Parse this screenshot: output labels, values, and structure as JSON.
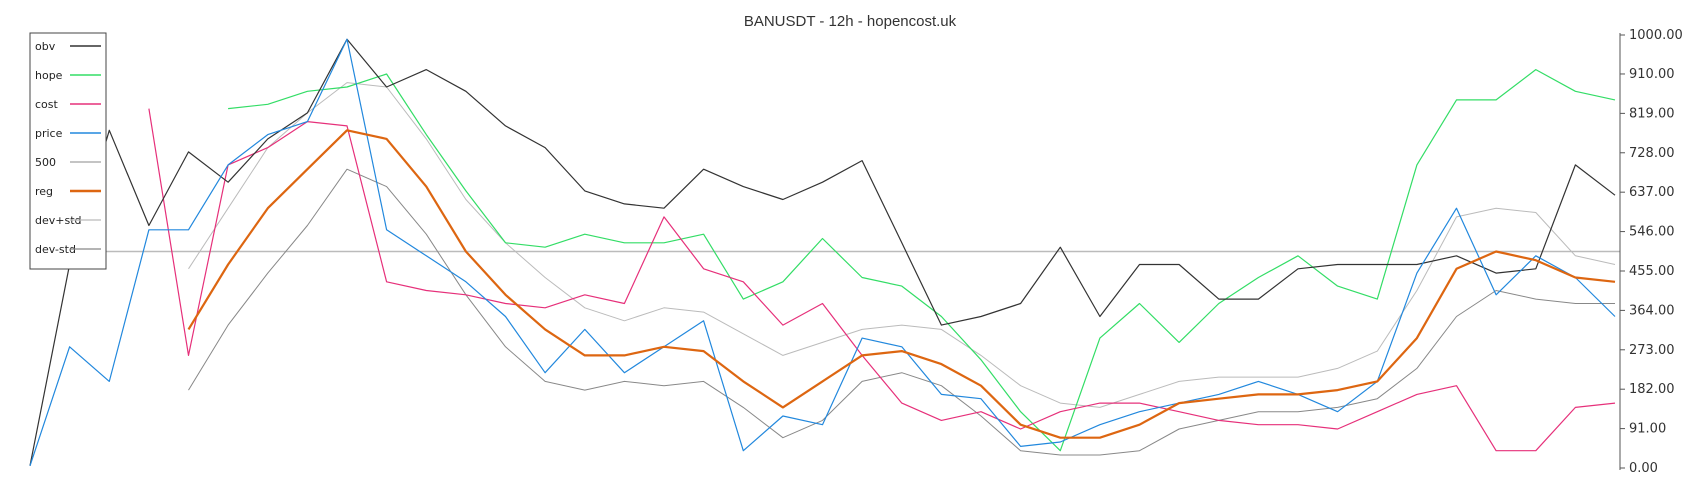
{
  "chart_data": {
    "type": "line",
    "title": "BANUSDT - 12h - hopencost.uk",
    "xlabel": "",
    "ylabel": "",
    "ylim": [
      0,
      1000
    ],
    "y_axis_position": "right",
    "y_ticks": [
      "0.00",
      "91.00",
      "182.00",
      "273.00",
      "364.00",
      "455.00",
      "546.00",
      "637.00",
      "728.00",
      "819.00",
      "910.00",
      "1000.00"
    ],
    "legend_position": "top-left",
    "horizontal_line": {
      "label": "500",
      "value": 500,
      "color": "#bbbbbb"
    },
    "x": [
      0,
      5,
      10,
      15,
      20,
      25,
      30,
      35,
      40,
      45,
      50,
      55,
      60,
      65,
      70,
      75,
      80,
      85,
      90,
      95,
      100,
      105,
      110,
      115,
      120,
      125,
      130,
      135,
      140,
      145,
      150,
      155,
      160,
      165,
      170,
      175,
      180,
      185,
      190,
      195,
      200
    ],
    "series": [
      {
        "name": "obv",
        "color": "#333333",
        "width": 1.2,
        "values": [
          5,
          470,
          780,
          560,
          730,
          660,
          760,
          820,
          990,
          880,
          920,
          870,
          790,
          740,
          640,
          610,
          600,
          690,
          650,
          620,
          660,
          710,
          520,
          330,
          350,
          380,
          510,
          350,
          470,
          470,
          390,
          390,
          460,
          470,
          470,
          470,
          490,
          450,
          460,
          700,
          630
        ]
      },
      {
        "name": "hope",
        "color": "#33dd66",
        "width": 1.2,
        "values": [
          null,
          null,
          null,
          null,
          null,
          830,
          840,
          870,
          880,
          910,
          770,
          640,
          520,
          510,
          540,
          520,
          520,
          540,
          390,
          430,
          530,
          440,
          420,
          350,
          250,
          130,
          40,
          300,
          380,
          290,
          380,
          440,
          490,
          420,
          390,
          700,
          850,
          850,
          920,
          870,
          850
        ]
      },
      {
        "name": "cost",
        "color": "#e6307a",
        "width": 1.2,
        "values": [
          null,
          null,
          null,
          830,
          260,
          700,
          740,
          800,
          790,
          430,
          410,
          400,
          380,
          370,
          400,
          380,
          580,
          460,
          430,
          330,
          380,
          260,
          150,
          110,
          130,
          90,
          130,
          150,
          150,
          130,
          110,
          100,
          100,
          90,
          130,
          170,
          190,
          40,
          40,
          140,
          150
        ]
      },
      {
        "name": "price",
        "color": "#2288dd",
        "width": 1.2,
        "values": [
          5,
          280,
          200,
          550,
          550,
          700,
          770,
          800,
          990,
          550,
          490,
          430,
          350,
          220,
          320,
          220,
          280,
          340,
          40,
          120,
          100,
          300,
          280,
          170,
          160,
          50,
          60,
          100,
          130,
          150,
          170,
          200,
          170,
          130,
          200,
          450,
          600,
          400,
          490,
          440,
          350
        ]
      },
      {
        "name": "reg",
        "color": "#dd6611",
        "width": 2.2,
        "values": [
          null,
          null,
          null,
          null,
          320,
          470,
          600,
          690,
          780,
          760,
          650,
          500,
          400,
          320,
          260,
          260,
          280,
          270,
          200,
          140,
          200,
          260,
          270,
          240,
          190,
          100,
          70,
          70,
          100,
          150,
          160,
          170,
          170,
          180,
          200,
          300,
          460,
          500,
          480,
          440,
          430
        ]
      },
      {
        "name": "dev+std",
        "color": "#bbbbbb",
        "width": 1.0,
        "values": [
          null,
          null,
          null,
          null,
          460,
          600,
          740,
          820,
          890,
          880,
          760,
          620,
          520,
          440,
          370,
          340,
          370,
          360,
          310,
          260,
          290,
          320,
          330,
          320,
          260,
          190,
          150,
          140,
          170,
          200,
          210,
          210,
          210,
          230,
          270,
          410,
          580,
          600,
          590,
          490,
          470
        ]
      },
      {
        "name": "dev-std",
        "color": "#888888",
        "width": 1.0,
        "values": [
          null,
          null,
          null,
          null,
          180,
          330,
          450,
          560,
          690,
          650,
          540,
          400,
          280,
          200,
          180,
          200,
          190,
          200,
          140,
          70,
          110,
          200,
          220,
          190,
          120,
          40,
          30,
          30,
          40,
          90,
          110,
          130,
          130,
          140,
          160,
          230,
          350,
          410,
          390,
          380,
          380
        ]
      }
    ]
  }
}
